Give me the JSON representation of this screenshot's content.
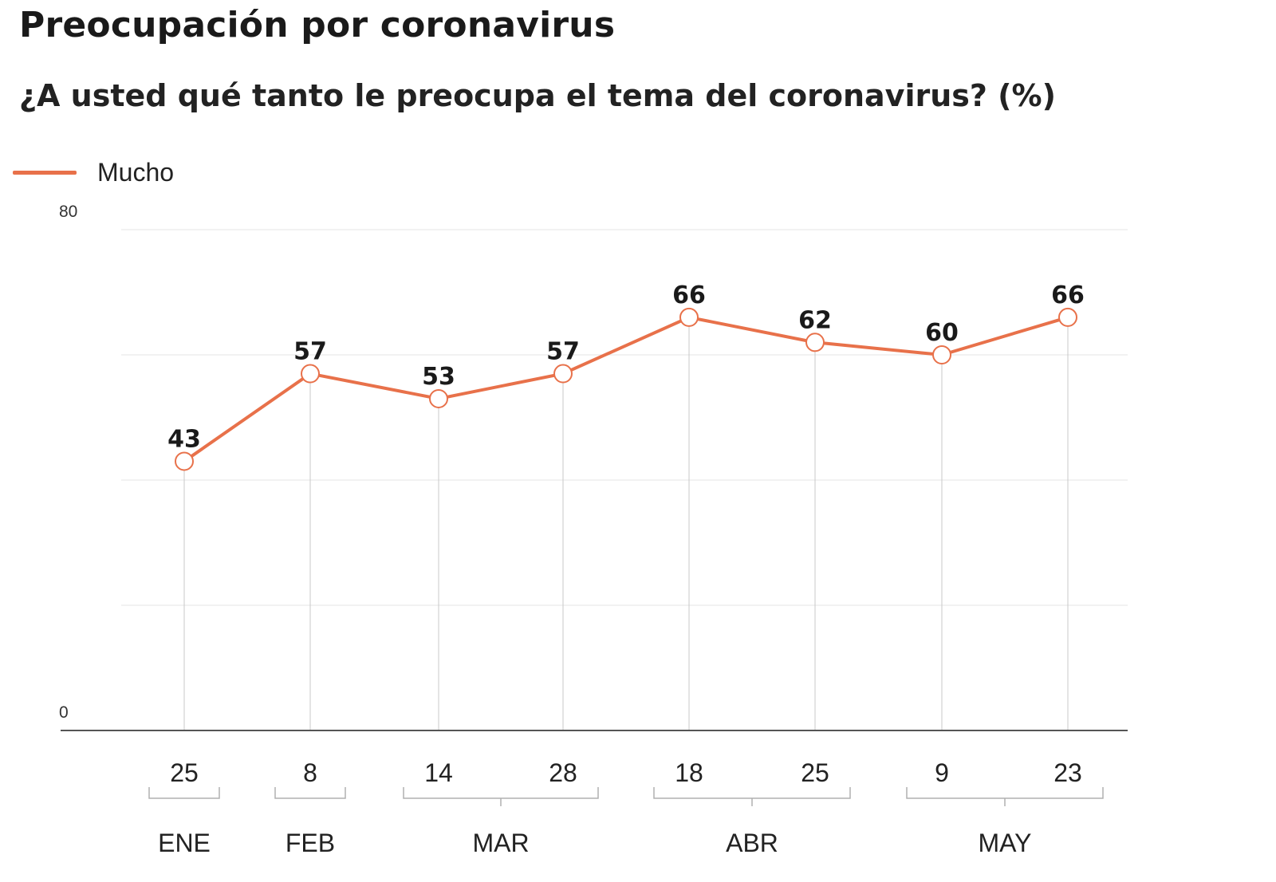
{
  "title": "Preocupación por coronavirus",
  "subtitle": "¿A usted qué tanto le preocupa el tema del coronavirus?  (%)",
  "colors": {
    "series": "#e8714a",
    "grid": "#e6e6e6",
    "axis": "#555555",
    "drop": "#c8c8c8"
  },
  "chart_data": {
    "type": "line",
    "title": "Preocupación por coronavirus",
    "subtitle": "¿A usted qué tanto le preocupa el tema del coronavirus?  (%)",
    "ylim": [
      0,
      80
    ],
    "y_ticks": [
      "0",
      "80"
    ],
    "grid": true,
    "legend_placement": "top-left",
    "x": [
      "25 ENE",
      "8 FEB",
      "14 MAR",
      "28 MAR",
      "18 ABR",
      "25 ABR",
      "9 MAY",
      "23 MAY"
    ],
    "x_day_labels": [
      "25",
      "8",
      "14",
      "28",
      "18",
      "25",
      "9",
      "23"
    ],
    "months": [
      {
        "label": "ENE",
        "points": [
          0
        ]
      },
      {
        "label": "FEB",
        "points": [
          1
        ]
      },
      {
        "label": "MAR",
        "points": [
          2,
          3
        ]
      },
      {
        "label": "ABR",
        "points": [
          4,
          5
        ]
      },
      {
        "label": "MAY",
        "points": [
          6,
          7
        ]
      }
    ],
    "series": [
      {
        "name": "Mucho",
        "values": [
          43,
          57,
          53,
          57,
          66,
          62,
          60,
          66
        ]
      }
    ]
  }
}
